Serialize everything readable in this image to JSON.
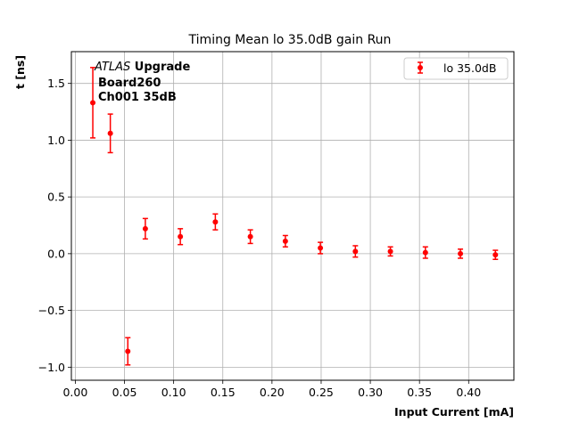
{
  "chart_data": {
    "type": "scatter",
    "title": "Timing Mean lo 35.0dB gain Run",
    "xlabel": "Input Current [mA]",
    "ylabel": "t [ns]",
    "xlim": [
      -0.004,
      0.446
    ],
    "ylim": [
      -1.115,
      1.78
    ],
    "xticks": [
      0.0,
      0.05,
      0.1,
      0.15,
      0.2,
      0.25,
      0.3,
      0.35,
      0.4
    ],
    "xtick_labels": [
      "0.00",
      "0.05",
      "0.10",
      "0.15",
      "0.20",
      "0.25",
      "0.30",
      "0.35",
      "0.40"
    ],
    "yticks": [
      -1.0,
      -0.5,
      0.0,
      0.5,
      1.0,
      1.5
    ],
    "ytick_labels": [
      "−1.0",
      "−0.5",
      "0.0",
      "0.5",
      "1.0",
      "1.5"
    ],
    "grid": true,
    "legend_position": "top-right",
    "annotations": {
      "experiment": "ATLAS",
      "experiment_suffix": " Upgrade",
      "board": "Board260",
      "channel": "Ch001 35dB"
    },
    "series": [
      {
        "name": "lo 35.0dB",
        "color": "#ff0000",
        "x": [
          0.0178,
          0.0356,
          0.0534,
          0.0712,
          0.1068,
          0.1424,
          0.178,
          0.2136,
          0.2492,
          0.2848,
          0.3204,
          0.356,
          0.3916,
          0.4272
        ],
        "y": [
          1.33,
          1.06,
          -0.86,
          0.22,
          0.15,
          0.28,
          0.15,
          0.11,
          0.05,
          0.02,
          0.02,
          0.01,
          0.0,
          -0.01
        ],
        "yerr": [
          0.31,
          0.17,
          0.12,
          0.09,
          0.07,
          0.07,
          0.06,
          0.05,
          0.05,
          0.05,
          0.04,
          0.05,
          0.04,
          0.04
        ]
      }
    ]
  }
}
